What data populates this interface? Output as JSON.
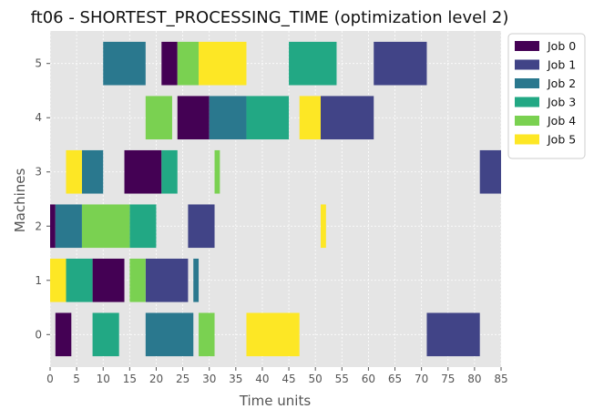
{
  "chart_data": {
    "type": "gantt",
    "title": "ft06 - SHORTEST_PROCESSING_TIME (optimization level 2)",
    "xlabel": "Time units",
    "ylabel": "Machines",
    "xlim": [
      0,
      85
    ],
    "x_ticks": [
      0,
      5,
      10,
      15,
      20,
      25,
      30,
      35,
      40,
      45,
      50,
      55,
      60,
      65,
      70,
      75,
      80,
      85
    ],
    "y_ticks": [
      0,
      1,
      2,
      3,
      4,
      5
    ],
    "grid": true,
    "legend_position": "top-right, outside plot",
    "series": [
      {
        "name": "Job 0",
        "color": "#440154",
        "tasks": [
          {
            "machine": 0,
            "start": 1,
            "end": 4
          },
          {
            "machine": 1,
            "start": 8,
            "end": 14
          },
          {
            "machine": 2,
            "start": 0,
            "end": 1
          },
          {
            "machine": 3,
            "start": 14,
            "end": 21
          },
          {
            "machine": 4,
            "start": 24,
            "end": 30
          },
          {
            "machine": 5,
            "start": 21,
            "end": 24
          }
        ]
      },
      {
        "name": "Job 1",
        "color": "#414487",
        "tasks": [
          {
            "machine": 0,
            "start": 71,
            "end": 81
          },
          {
            "machine": 1,
            "start": 18,
            "end": 26
          },
          {
            "machine": 2,
            "start": 26,
            "end": 31
          },
          {
            "machine": 3,
            "start": 81,
            "end": 85
          },
          {
            "machine": 4,
            "start": 51,
            "end": 61
          },
          {
            "machine": 5,
            "start": 61,
            "end": 71
          }
        ]
      },
      {
        "name": "Job 2",
        "color": "#2a788e",
        "tasks": [
          {
            "machine": 0,
            "start": 18,
            "end": 27
          },
          {
            "machine": 1,
            "start": 27,
            "end": 28
          },
          {
            "machine": 2,
            "start": 1,
            "end": 6
          },
          {
            "machine": 3,
            "start": 6,
            "end": 10
          },
          {
            "machine": 4,
            "start": 30,
            "end": 37
          },
          {
            "machine": 5,
            "start": 10,
            "end": 18
          }
        ]
      },
      {
        "name": "Job 3",
        "color": "#22a884",
        "tasks": [
          {
            "machine": 0,
            "start": 8,
            "end": 13
          },
          {
            "machine": 1,
            "start": 3,
            "end": 8
          },
          {
            "machine": 2,
            "start": 15,
            "end": 20
          },
          {
            "machine": 3,
            "start": 21,
            "end": 24
          },
          {
            "machine": 4,
            "start": 37,
            "end": 45
          },
          {
            "machine": 5,
            "start": 45,
            "end": 54
          }
        ]
      },
      {
        "name": "Job 4",
        "color": "#7ad151",
        "tasks": [
          {
            "machine": 0,
            "start": 28,
            "end": 31
          },
          {
            "machine": 1,
            "start": 15,
            "end": 18
          },
          {
            "machine": 2,
            "start": 6,
            "end": 15
          },
          {
            "machine": 3,
            "start": 31,
            "end": 32
          },
          {
            "machine": 4,
            "start": 18,
            "end": 23
          },
          {
            "machine": 5,
            "start": 24,
            "end": 28
          }
        ]
      },
      {
        "name": "Job 5",
        "color": "#fde725",
        "tasks": [
          {
            "machine": 0,
            "start": 37,
            "end": 47
          },
          {
            "machine": 1,
            "start": 0,
            "end": 3
          },
          {
            "machine": 2,
            "start": 51,
            "end": 52
          },
          {
            "machine": 3,
            "start": 3,
            "end": 6
          },
          {
            "machine": 4,
            "start": 47,
            "end": 51
          },
          {
            "machine": 5,
            "start": 28,
            "end": 37
          }
        ]
      }
    ]
  }
}
